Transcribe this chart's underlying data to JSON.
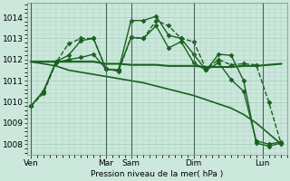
{
  "background_color": "#cce8dc",
  "grid_color": "#aacfbf",
  "line_color": "#1a6020",
  "xlabel_text": "Pression niveau de la mer( hPa )",
  "ylim": [
    1007.5,
    1014.7
  ],
  "yticks": [
    1008,
    1009,
    1010,
    1011,
    1012,
    1013,
    1014
  ],
  "x_day_labels": [
    "Ven",
    "Mar",
    "Sam",
    "Dim",
    "Lun"
  ],
  "x_day_positions": [
    0.0,
    6.0,
    8.0,
    13.0,
    18.5
  ],
  "xlim": [
    -0.3,
    20.5
  ],
  "vlines": [
    0.0,
    6.0,
    8.0,
    13.0,
    18.5
  ],
  "series": [
    {
      "x": [
        0,
        1,
        2,
        3,
        4,
        5,
        6,
        7,
        8,
        9,
        10,
        11,
        12,
        13,
        14,
        15,
        16,
        17,
        18,
        19,
        20
      ],
      "y": [
        1009.8,
        1010.4,
        1011.85,
        1012.75,
        1013.0,
        1013.0,
        1011.55,
        1011.45,
        1013.05,
        1013.0,
        1013.85,
        1013.6,
        1013.0,
        1012.85,
        1011.55,
        1012.0,
        1011.75,
        1011.8,
        1011.75,
        1010.0,
        1008.0
      ],
      "marker": "D",
      "markersize": 2.5,
      "linewidth": 1.0,
      "linestyle": "--"
    },
    {
      "x": [
        0,
        1,
        2,
        3,
        4,
        5,
        6,
        7,
        8,
        9,
        10,
        11,
        12,
        13,
        14,
        15,
        16,
        17,
        18,
        19,
        20
      ],
      "y": [
        1011.9,
        1011.9,
        1011.9,
        1011.9,
        1011.9,
        1011.9,
        1011.8,
        1011.8,
        1011.75,
        1011.75,
        1011.75,
        1011.7,
        1011.7,
        1011.7,
        1011.65,
        1011.65,
        1011.65,
        1011.7,
        1011.7,
        1011.75,
        1011.8
      ],
      "marker": "",
      "markersize": 0,
      "linewidth": 1.5,
      "linestyle": "-"
    },
    {
      "x": [
        0,
        1,
        2,
        3,
        4,
        5,
        6,
        7,
        8,
        9,
        10,
        11,
        12,
        13,
        14,
        15,
        16,
        17,
        18,
        19,
        20
      ],
      "y": [
        1011.9,
        1011.8,
        1011.7,
        1011.5,
        1011.4,
        1011.3,
        1011.2,
        1011.1,
        1011.0,
        1010.9,
        1010.75,
        1010.6,
        1010.45,
        1010.3,
        1010.1,
        1009.9,
        1009.7,
        1009.4,
        1009.0,
        1008.5,
        1008.0
      ],
      "marker": "",
      "markersize": 0,
      "linewidth": 1.2,
      "linestyle": "-"
    },
    {
      "x": [
        0,
        1,
        2,
        3,
        4,
        5,
        6,
        7,
        8,
        9,
        10,
        11,
        12,
        13,
        14,
        15,
        16,
        17,
        18,
        19,
        20
      ],
      "y": [
        1009.8,
        1010.5,
        1011.9,
        1012.2,
        1012.9,
        1013.0,
        1011.55,
        1011.5,
        1013.85,
        1013.85,
        1014.05,
        1013.15,
        1013.0,
        1012.25,
        1011.5,
        1012.25,
        1012.2,
        1011.0,
        1008.05,
        1007.9,
        1008.05
      ],
      "marker": "D",
      "markersize": 2.5,
      "linewidth": 1.0,
      "linestyle": "-"
    },
    {
      "x": [
        0,
        1,
        2,
        3,
        4,
        5,
        6,
        7,
        8,
        9,
        10,
        11,
        12,
        13,
        14,
        15,
        16,
        17,
        18,
        19,
        20
      ],
      "y": [
        1009.8,
        1010.5,
        1011.85,
        1012.0,
        1012.1,
        1012.25,
        1011.55,
        1011.5,
        1013.05,
        1013.0,
        1013.6,
        1012.55,
        1012.85,
        1011.85,
        1011.5,
        1011.85,
        1011.05,
        1010.5,
        1008.15,
        1008.0,
        1008.1
      ],
      "marker": "D",
      "markersize": 2.5,
      "linewidth": 1.0,
      "linestyle": "-"
    }
  ]
}
